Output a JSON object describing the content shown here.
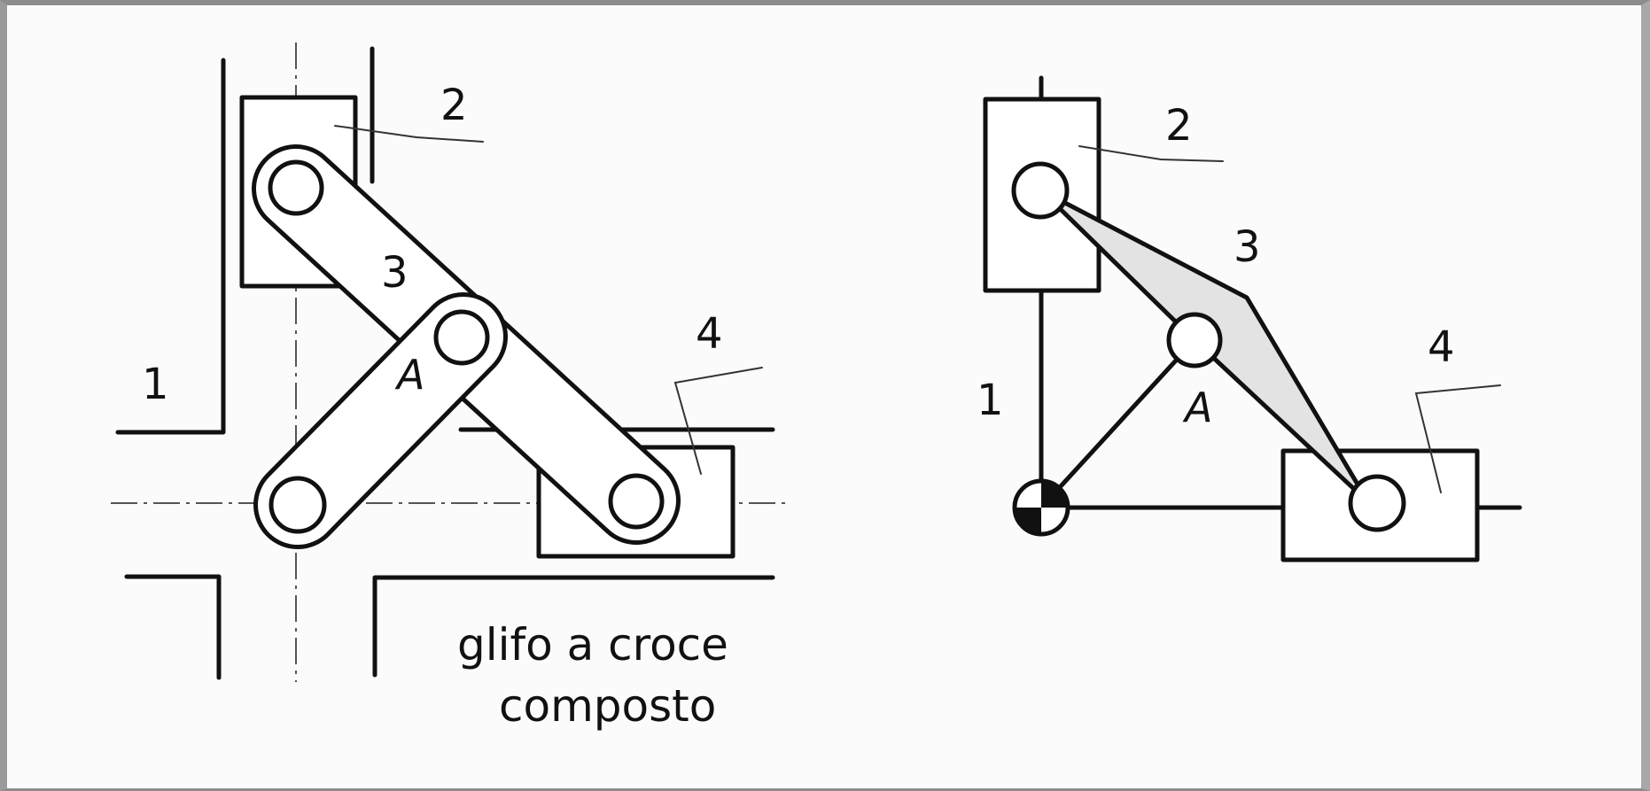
{
  "left_diagram": {
    "labels": {
      "frame": "1",
      "slider_top": "2",
      "link": "3",
      "slider_right": "4",
      "joint": "A"
    },
    "caption": {
      "line1": "glifo a croce",
      "line2": "composto"
    }
  },
  "right_diagram": {
    "labels": {
      "frame": "1",
      "slider_top": "2",
      "link": "3",
      "slider_right": "4",
      "joint": "A"
    }
  }
}
